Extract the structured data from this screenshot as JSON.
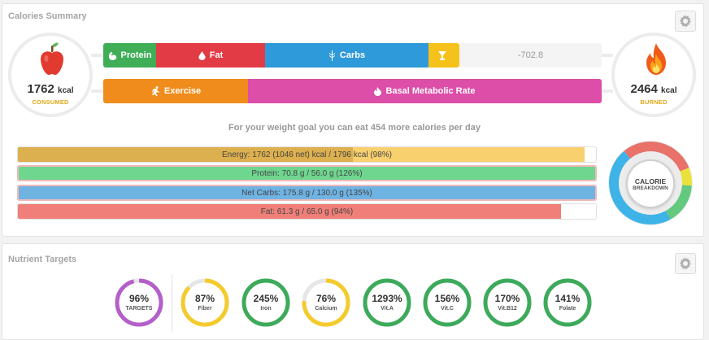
{
  "summary": {
    "title": "Calories Summary",
    "consumed": {
      "value": "1762",
      "unit": "kcal",
      "label": "CONSUMED"
    },
    "burned": {
      "value": "2464",
      "unit": "kcal",
      "label": "BURNED"
    },
    "intake_segments": [
      {
        "label": "Protein",
        "icon": "muscle-icon",
        "color": "#3fae57"
      },
      {
        "label": "Fat",
        "icon": "drop-icon",
        "color": "#e23b45"
      },
      {
        "label": "Carbs",
        "icon": "wheat-icon",
        "color": "#2f9ad9"
      },
      {
        "label": "",
        "icon": "glass-icon",
        "color": "#f5c21b"
      }
    ],
    "deficit_value": "-702.8",
    "burn_segments": [
      {
        "label": "Exercise",
        "icon": "running-icon",
        "color": "#ef8c1b"
      },
      {
        "label": "Basal Metabolic Rate",
        "icon": "flame-icon",
        "color": "#dc4ea8"
      }
    ],
    "goal_text": "For your weight goal you can eat 454 more calories per day"
  },
  "nutrient_bars": [
    {
      "label": "Energy: 1762 (1046 net) kcal / 1796 kcal (98%)",
      "percent": 98,
      "color": "#f8d06e",
      "net_percent": 58,
      "net_color": "#ddb04f",
      "highlight": false
    },
    {
      "label": "Protein: 70.8 g / 56.0 g (126%)",
      "percent": 126,
      "color": "#6fd68f",
      "highlight": true
    },
    {
      "label": "Net Carbs: 175.8 g / 130.0 g (135%)",
      "percent": 135,
      "color": "#6fb3e3",
      "highlight": true
    },
    {
      "label": "Fat: 61.3 g / 65.0 g (94%)",
      "percent": 94,
      "color": "#ef7f78",
      "highlight": false
    }
  ],
  "breakdown": {
    "line1": "CALORIE",
    "line2": "BREAKDOWN",
    "segments": [
      {
        "color": "#e8716a",
        "fraction": 0.3
      },
      {
        "color": "#eae23c",
        "fraction": 0.07
      },
      {
        "color": "#63c97f",
        "fraction": 0.16
      },
      {
        "color": "#3db3e8",
        "fraction": 0.47
      }
    ]
  },
  "targets": {
    "title": "Nutrient Targets",
    "items": [
      {
        "percent": "96%",
        "label": "TARGETS",
        "value": 0.96,
        "color": "#b45fc9"
      },
      {
        "percent": "87%",
        "label": "Fiber",
        "value": 0.87,
        "color": "#f4cb2d"
      },
      {
        "percent": "245%",
        "label": "Iron",
        "value": 1.0,
        "color": "#3daa5b"
      },
      {
        "percent": "76%",
        "label": "Calcium",
        "value": 0.76,
        "color": "#f4cb2d"
      },
      {
        "percent": "1293%",
        "label": "Vit.A",
        "value": 1.0,
        "color": "#3daa5b"
      },
      {
        "percent": "156%",
        "label": "Vit.C",
        "value": 1.0,
        "color": "#3daa5b"
      },
      {
        "percent": "170%",
        "label": "Vit.B12",
        "value": 1.0,
        "color": "#3daa5b"
      },
      {
        "percent": "141%",
        "label": "Folate",
        "value": 1.0,
        "color": "#3daa5b"
      }
    ]
  }
}
